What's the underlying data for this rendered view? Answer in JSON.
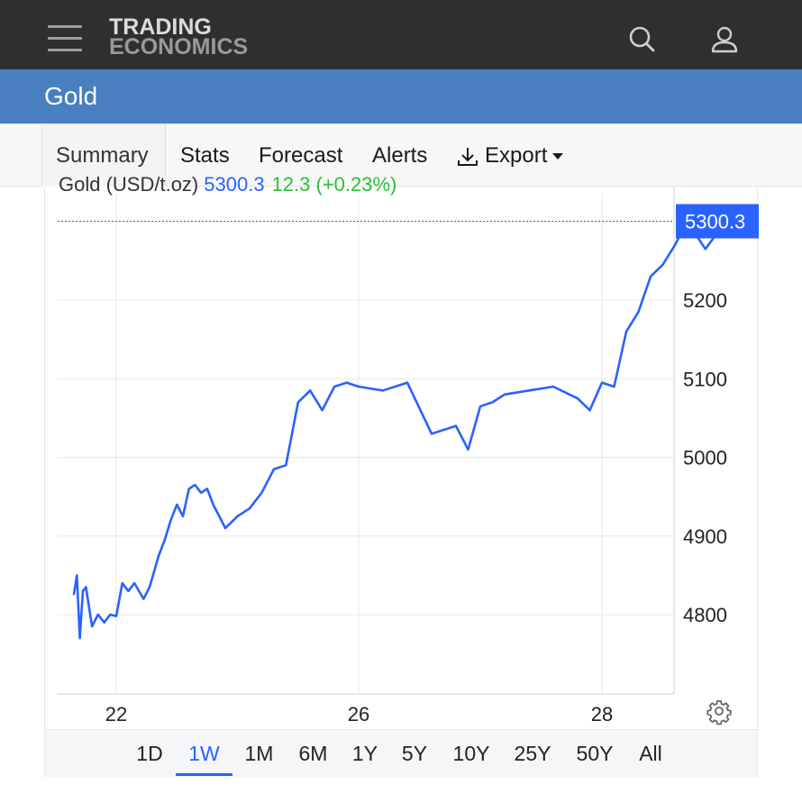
{
  "header": {
    "logo_line1": "TRADING",
    "logo_line2": "ECONOMICS",
    "menu_icon": "hamburger-icon",
    "search_icon": "search-icon",
    "user_icon": "user-icon"
  },
  "page": {
    "title": "Gold"
  },
  "tabs": [
    {
      "label": "Summary",
      "active": true
    },
    {
      "label": "Stats",
      "active": false
    },
    {
      "label": "Forecast",
      "active": false
    },
    {
      "label": "Alerts",
      "active": false
    },
    {
      "label": "Export",
      "active": false,
      "icon": "download-icon"
    }
  ],
  "legend": {
    "name": "Gold (USD/t.oz)",
    "price": "5300.3",
    "change": "12.3 (+0.23%)"
  },
  "colors": {
    "accent": "#2962ff",
    "title_bar": "#4a7fbf",
    "top_bar": "#2f2f2f",
    "positive": "#2cc038"
  },
  "chart_data": {
    "type": "line",
    "series": [
      {
        "name": "Gold",
        "x": [
          21.3,
          21.35,
          21.4,
          21.45,
          21.5,
          21.6,
          21.7,
          21.8,
          21.9,
          22.0,
          22.1,
          22.2,
          22.3,
          22.45,
          22.55,
          22.7,
          22.8,
          22.9,
          23.0,
          23.1,
          23.2,
          23.3,
          23.4,
          23.5,
          23.6,
          23.8,
          24.0,
          24.2,
          24.4,
          24.6,
          24.8,
          25.0,
          25.2,
          25.4,
          25.6,
          25.8,
          26.0,
          26.2,
          26.4,
          26.6,
          26.8,
          26.9,
          27.0,
          27.1,
          27.2,
          27.4,
          27.6,
          27.8,
          27.9,
          28.0,
          28.1,
          28.2,
          28.3,
          28.4,
          28.5,
          28.6,
          28.7,
          28.85,
          28.97,
          29.03
        ],
        "values": [
          4825,
          4850,
          4770,
          4830,
          4835,
          4785,
          4800,
          4790,
          4800,
          4798,
          4840,
          4830,
          4840,
          4820,
          4835,
          4875,
          4895,
          4920,
          4940,
          4925,
          4960,
          4965,
          4955,
          4960,
          4940,
          4910,
          4925,
          4935,
          4955,
          4985,
          4990,
          5070,
          5085,
          5060,
          5090,
          5095,
          5090,
          5085,
          5095,
          5030,
          5040,
          5010,
          5065,
          5070,
          5080,
          5085,
          5090,
          5075,
          5060,
          5095,
          5090,
          5160,
          5185,
          5230,
          5245,
          5270,
          5300,
          5265,
          5290,
          5300.3
        ]
      }
    ],
    "x_ticks": [
      "22",
      "26",
      "28"
    ],
    "y_ticks": [
      4800,
      4900,
      5000,
      5100,
      5200
    ],
    "ylim": [
      4710,
      5330
    ],
    "xlim": [
      21.3,
      29.15
    ],
    "last_value_label": "5300.3",
    "grid": true
  },
  "ranges": [
    "1D",
    "1W",
    "1M",
    "6M",
    "1Y",
    "5Y",
    "10Y",
    "25Y",
    "50Y",
    "All"
  ],
  "active_range": "1W",
  "settings_icon": "gear-icon"
}
